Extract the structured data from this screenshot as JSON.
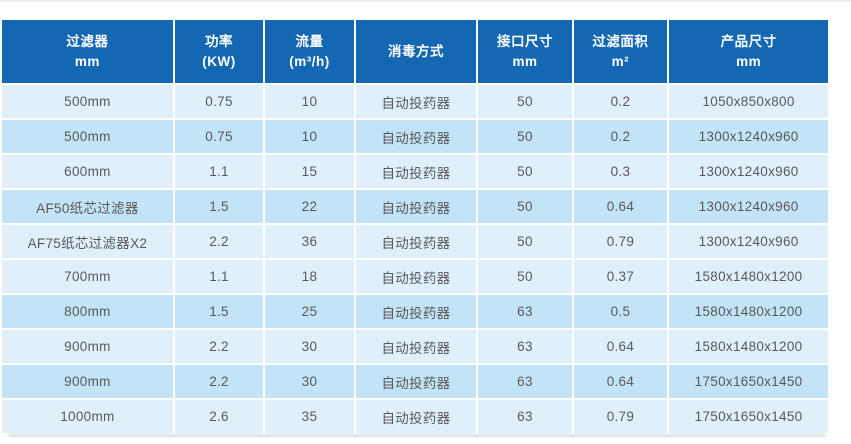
{
  "colors": {
    "header_bg": "#1467b2",
    "header_text": "#ffffff",
    "row_light": "#dff0fa",
    "row_dark": "#c2e4f6",
    "body_text": "#58595b",
    "gap": "#ffffff"
  },
  "chart_data": {
    "type": "table",
    "title": "",
    "columns": [
      {
        "line1": "过滤器",
        "line2": "mm"
      },
      {
        "line1": "功率",
        "line2": "(KW)"
      },
      {
        "line1": "流量",
        "line2": "(m³/h)"
      },
      {
        "line1": "消毒方式",
        "line2": ""
      },
      {
        "line1": "接口尺寸",
        "line2": "mm"
      },
      {
        "line1": "过滤面积",
        "line2": "m²"
      },
      {
        "line1": "产品尺寸",
        "line2": "mm"
      }
    ],
    "rows": [
      [
        "500mm",
        "0.75",
        "10",
        "自动投药器",
        "50",
        "0.2",
        "1050x850x800"
      ],
      [
        "500mm",
        "0.75",
        "10",
        "自动投药器",
        "50",
        "0.2",
        "1300x1240x960"
      ],
      [
        "600mm",
        "1.1",
        "15",
        "自动投药器",
        "50",
        "0.3",
        "1300x1240x960"
      ],
      [
        "AF50纸芯过滤器",
        "1.5",
        "22",
        "自动投药器",
        "50",
        "0.64",
        "1300x1240x960"
      ],
      [
        "AF75纸芯过滤器X2",
        "2.2",
        "36",
        "自动投药器",
        "50",
        "0.79",
        "1300x1240x960"
      ],
      [
        "700mm",
        "1.1",
        "18",
        "自动投药器",
        "50",
        "0.37",
        "1580x1480x1200"
      ],
      [
        "800mm",
        "1.5",
        "25",
        "自动投药器",
        "63",
        "0.5",
        "1580x1480x1200"
      ],
      [
        "900mm",
        "2.2",
        "30",
        "自动投药器",
        "63",
        "0.64",
        "1580x1480x1200"
      ],
      [
        "900mm",
        "2.2",
        "30",
        "自动投药器",
        "63",
        "0.64",
        "1750x1650x1450"
      ],
      [
        "1000mm",
        "2.6",
        "35",
        "自动投药器",
        "63",
        "0.79",
        "1750x1650x1450"
      ]
    ],
    "dark_row_indices": [
      1,
      3,
      6,
      8
    ]
  }
}
